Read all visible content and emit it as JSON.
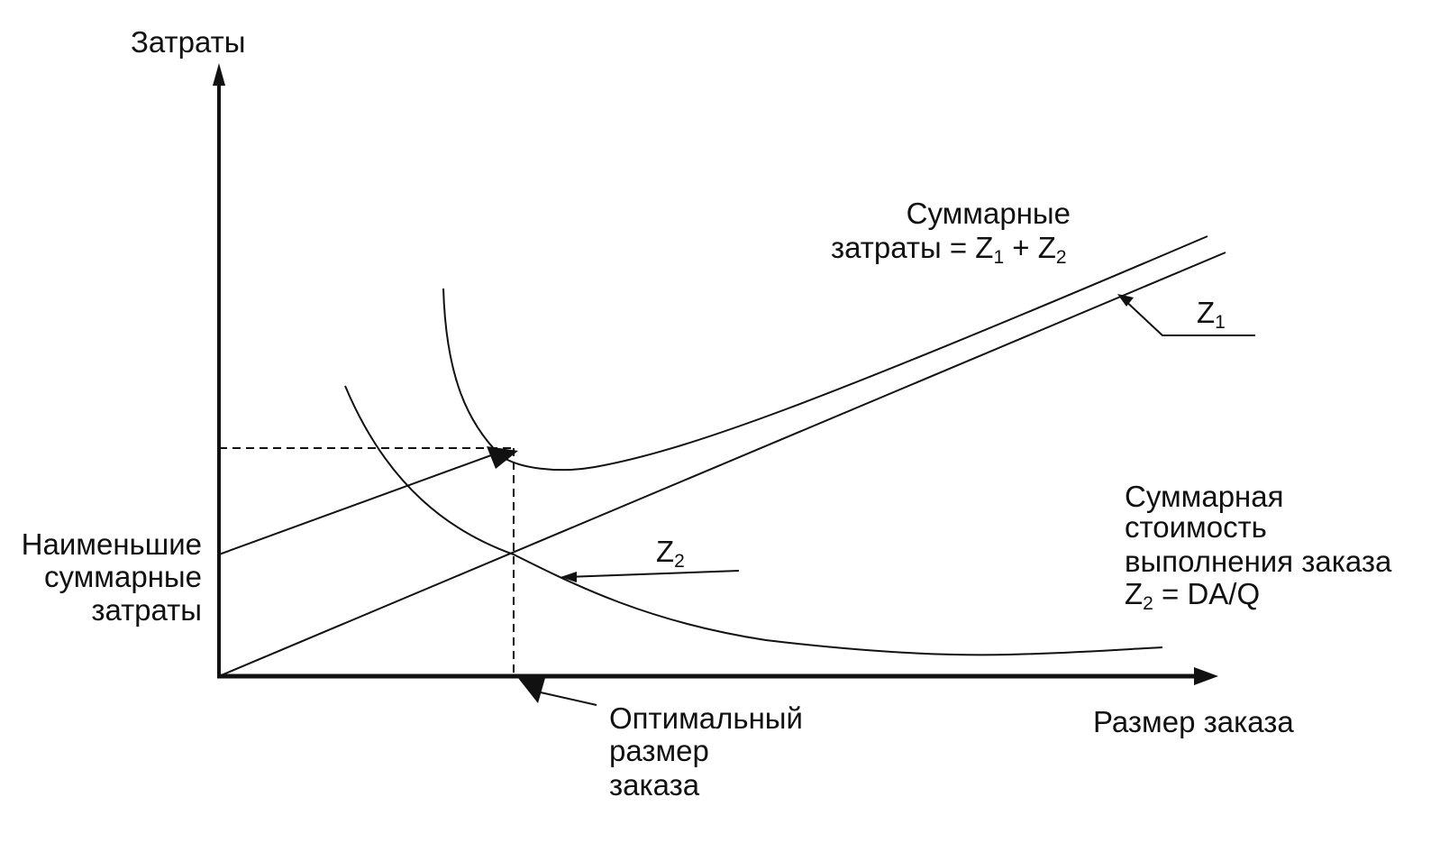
{
  "axes": {
    "y_label": "Затраты",
    "x_label": "Размер заказа"
  },
  "total_cost": {
    "line1": "Суммарные",
    "line2": [
      "затраты = Z",
      "1",
      " + Z",
      "2"
    ]
  },
  "z1_label": [
    "Z",
    "1"
  ],
  "z2_label": [
    "Z",
    "2"
  ],
  "order_cost": {
    "lines": [
      "Суммарная",
      "стоимость",
      "выполнения заказа"
    ],
    "formula": [
      "Z",
      "2",
      " = DA/Q"
    ]
  },
  "min_cost": [
    "Наименьшие",
    "суммарные",
    "затраты"
  ],
  "optimal": [
    "Оптимальный",
    "размер",
    "заказа"
  ]
}
